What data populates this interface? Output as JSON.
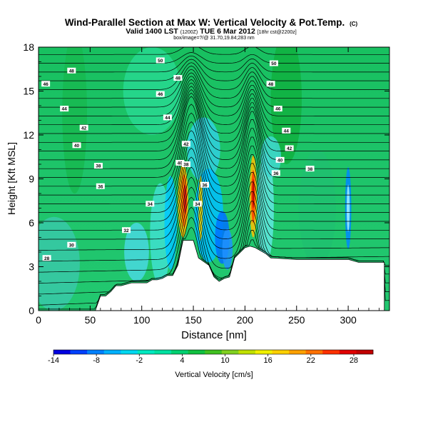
{
  "header": {
    "title": "Wind-Parallel Section at Max W: Vertical Velocity & Pot.Temp.",
    "copyright": "(C)",
    "valid_line": "Valid 1400 LST",
    "valid_utc": "(1200Z)",
    "valid_date": "TUE 6 Mar 2012",
    "valid_run": "[18hr cst@2200z]",
    "location": "box/image=?/@ 31.70,19.84;283 nm"
  },
  "chart_data": {
    "type": "heatmap",
    "xlabel": "Distance [nm]",
    "ylabel": "Height [Kft MSL]",
    "xlim": [
      0,
      340
    ],
    "ylim": [
      0,
      18
    ],
    "x_ticks": [
      "0",
      "50",
      "100",
      "150",
      "200",
      "250",
      "300"
    ],
    "y_ticks": [
      "0",
      "3",
      "6",
      "9",
      "12",
      "15",
      "18"
    ],
    "colorbar": {
      "label": "Vertical Velocity [cm/s]",
      "tick_labels": [
        "-14",
        "-8",
        "-2",
        "4",
        "10",
        "16",
        "22",
        "28"
      ],
      "colors": [
        "#0000e0",
        "#0040ff",
        "#0080ff",
        "#00b0ff",
        "#00d8f0",
        "#00e8c0",
        "#00e0a0",
        "#00d070",
        "#10c040",
        "#40c020",
        "#80d020",
        "#c0e000",
        "#f0f000",
        "#ffd000",
        "#ffa000",
        "#ff7000",
        "#ff3000",
        "#e00000",
        "#c00000"
      ]
    },
    "terrain_profile": [
      [
        0,
        0
      ],
      [
        55,
        0
      ],
      [
        60,
        1
      ],
      [
        65,
        1
      ],
      [
        70,
        1.3
      ],
      [
        75,
        1.7
      ],
      [
        80,
        1.7
      ],
      [
        85,
        1.8
      ],
      [
        90,
        1.9
      ],
      [
        95,
        1.9
      ],
      [
        100,
        1.9
      ],
      [
        105,
        1.9
      ],
      [
        110,
        2.1
      ],
      [
        115,
        2.1
      ],
      [
        120,
        2.2
      ],
      [
        125,
        2.4
      ],
      [
        130,
        2.4
      ],
      [
        135,
        3.1
      ],
      [
        140,
        4.8
      ],
      [
        150,
        4.8
      ],
      [
        155,
        3.6
      ],
      [
        165,
        3.1
      ],
      [
        170,
        2.3
      ],
      [
        175,
        2.0
      ],
      [
        180,
        2.2
      ],
      [
        185,
        2.3
      ],
      [
        190,
        3.6
      ],
      [
        200,
        4.3
      ],
      [
        205,
        4.4
      ],
      [
        210,
        4.3
      ],
      [
        215,
        4.1
      ],
      [
        220,
        3.9
      ],
      [
        225,
        3.6
      ],
      [
        250,
        3.5
      ],
      [
        270,
        3.5
      ],
      [
        300,
        3.5
      ],
      [
        310,
        3.3
      ],
      [
        315,
        3.3
      ],
      [
        335,
        3.3
      ],
      [
        335,
        0
      ]
    ],
    "theta_labels": [
      {
        "text": "50",
        "x": 118,
        "y": 17.1
      },
      {
        "text": "50",
        "x": 228,
        "y": 16.9
      },
      {
        "text": "48",
        "x": 32,
        "y": 16.4
      },
      {
        "text": "48",
        "x": 135,
        "y": 15.9
      },
      {
        "text": "48",
        "x": 225,
        "y": 15.5
      },
      {
        "text": "46",
        "x": 7,
        "y": 15.5
      },
      {
        "text": "46",
        "x": 118,
        "y": 14.8
      },
      {
        "text": "46",
        "x": 232,
        "y": 13.8
      },
      {
        "text": "44",
        "x": 25,
        "y": 13.8
      },
      {
        "text": "44",
        "x": 125,
        "y": 13.2
      },
      {
        "text": "44",
        "x": 240,
        "y": 12.3
      },
      {
        "text": "42",
        "x": 44,
        "y": 12.5
      },
      {
        "text": "42",
        "x": 143,
        "y": 11.4
      },
      {
        "text": "42",
        "x": 243,
        "y": 11.1
      },
      {
        "text": "40",
        "x": 37,
        "y": 11.3
      },
      {
        "text": "40",
        "x": 137,
        "y": 10.1
      },
      {
        "text": "40",
        "x": 234,
        "y": 10.3
      },
      {
        "text": "38",
        "x": 58,
        "y": 9.9
      },
      {
        "text": "38",
        "x": 143,
        "y": 10
      },
      {
        "text": "38",
        "x": 263,
        "y": 9.7
      },
      {
        "text": "36",
        "x": 60,
        "y": 8.5
      },
      {
        "text": "36",
        "x": 161,
        "y": 8.6
      },
      {
        "text": "36",
        "x": 230,
        "y": 9.4
      },
      {
        "text": "34",
        "x": 108,
        "y": 7.3
      },
      {
        "text": "34",
        "x": 154,
        "y": 7.3
      },
      {
        "text": "32",
        "x": 85,
        "y": 5.5
      },
      {
        "text": "30",
        "x": 32,
        "y": 4.5
      },
      {
        "text": "28",
        "x": 8,
        "y": 3.6
      }
    ]
  }
}
